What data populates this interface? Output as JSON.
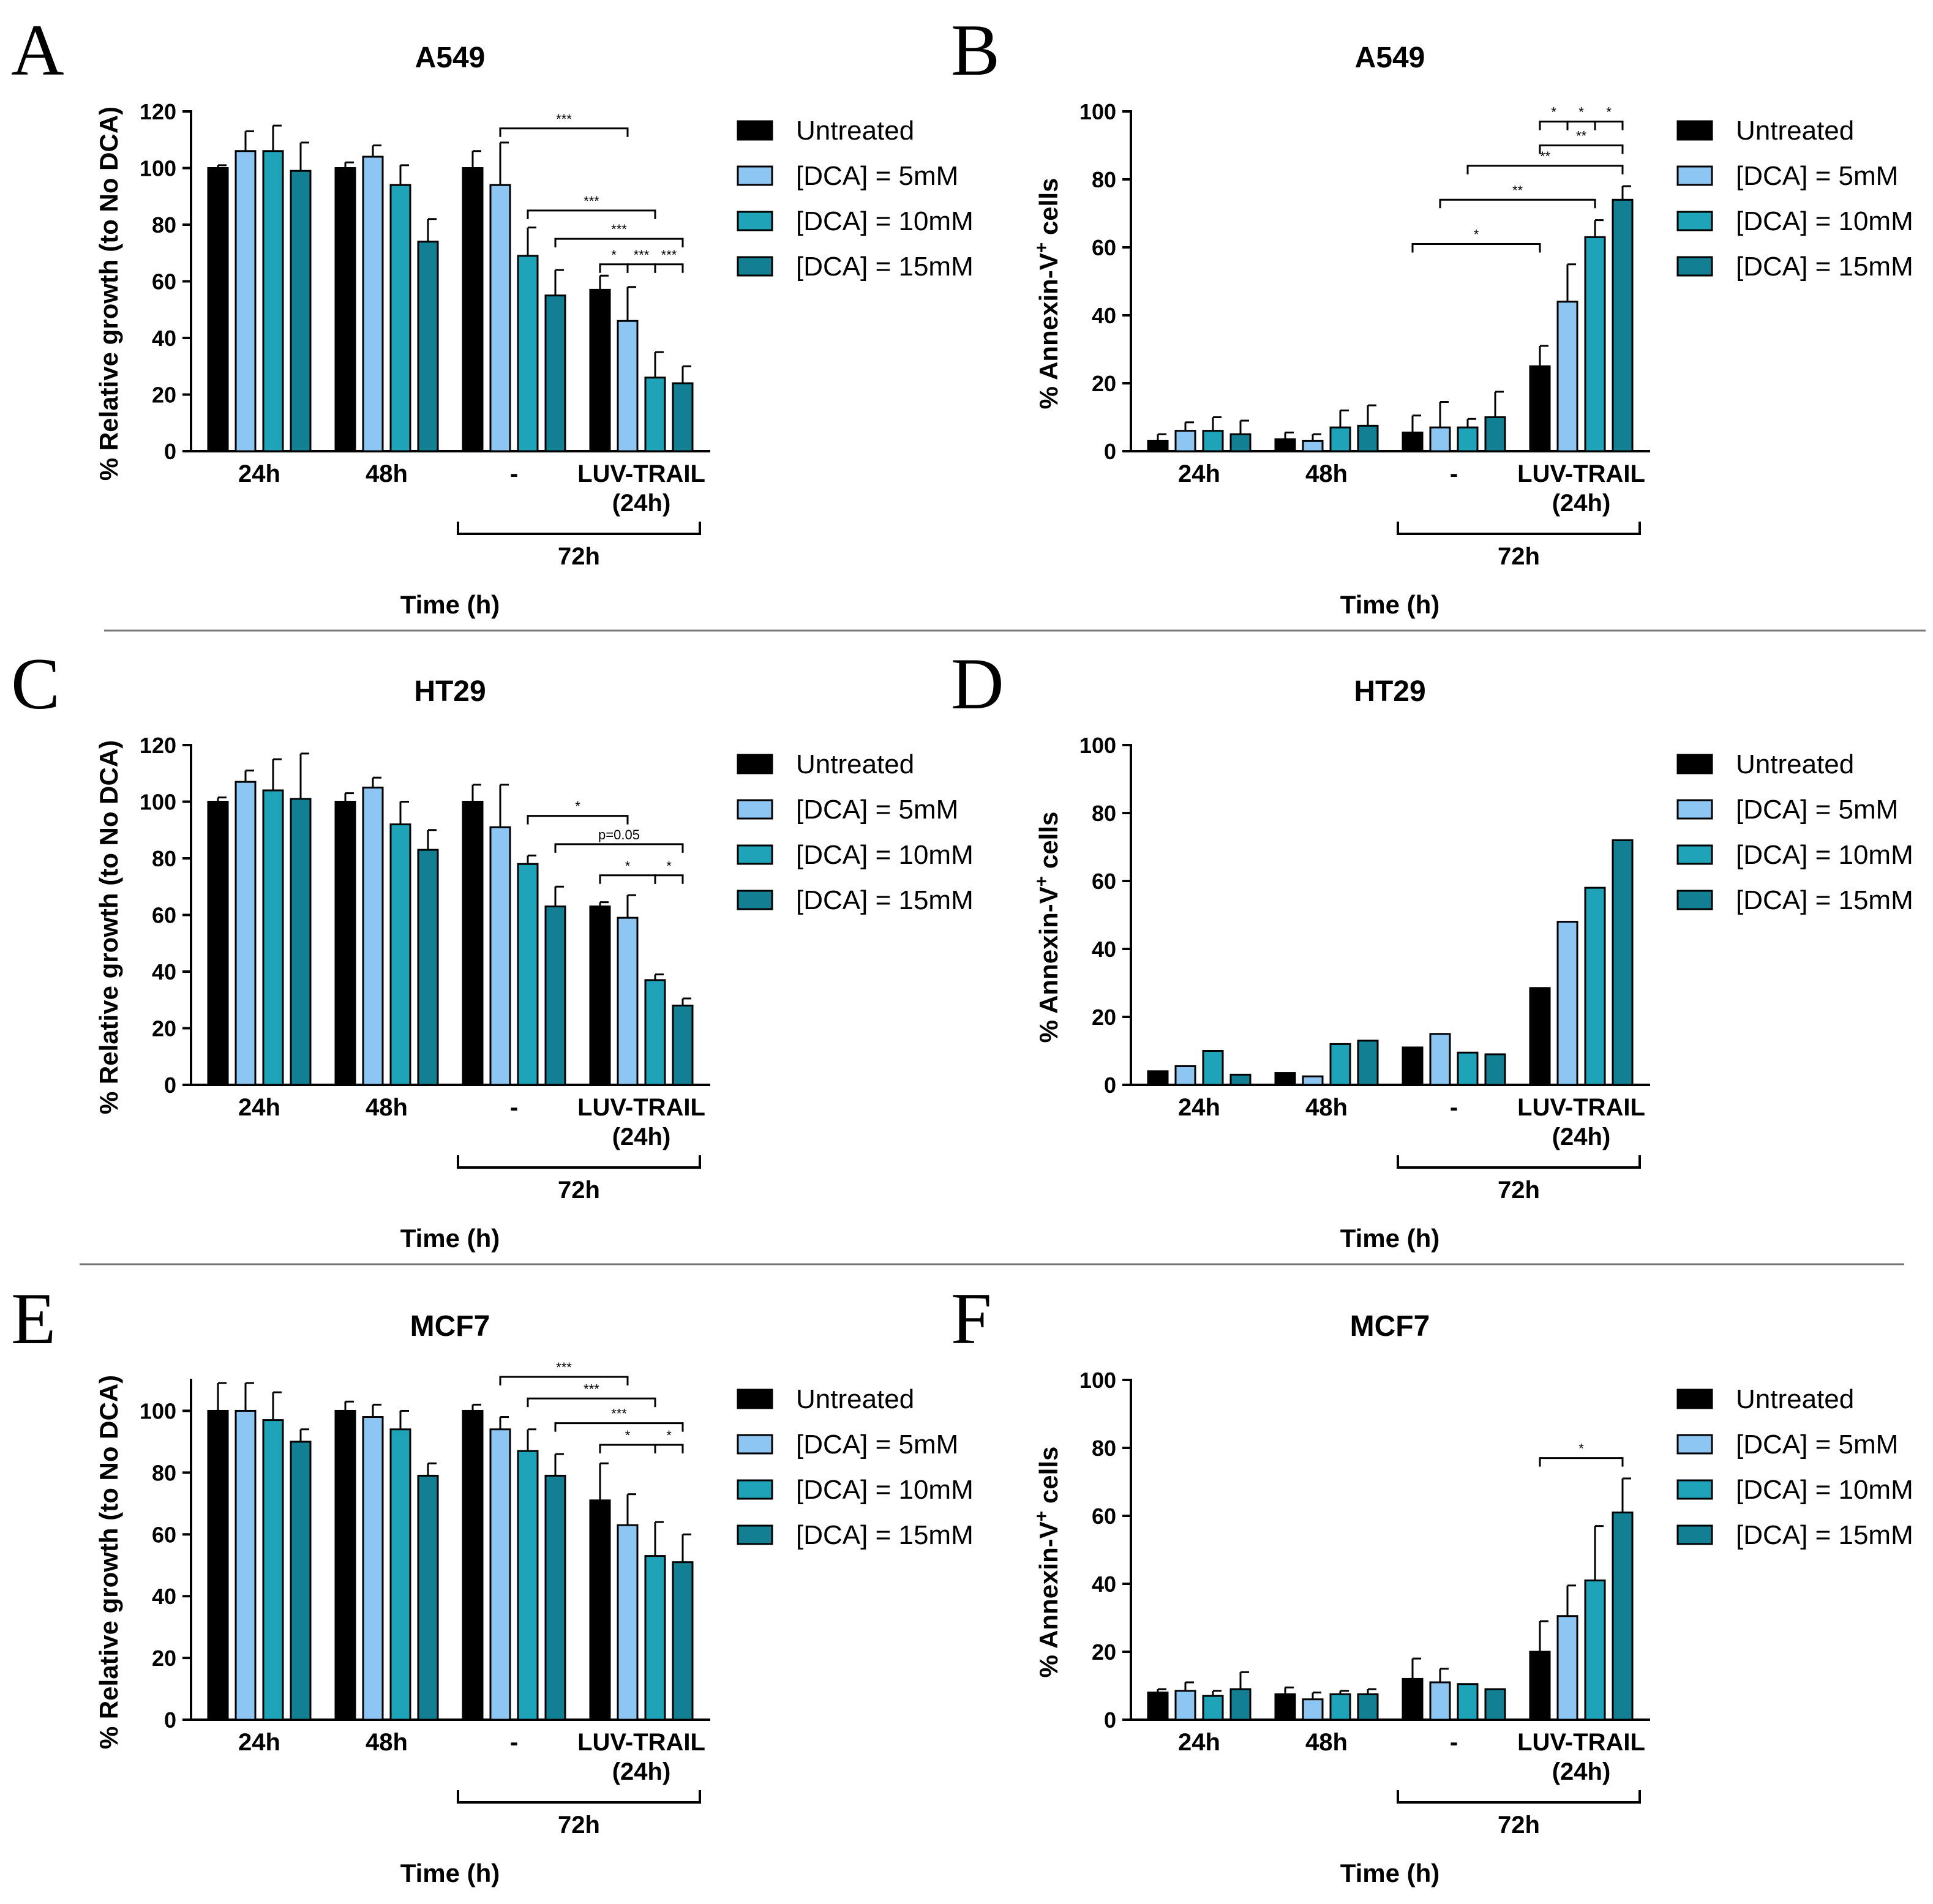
{
  "colors": {
    "untreated": "#000000",
    "dca5": "#8ec6f3",
    "dca10": "#1ea3b8",
    "dca15": "#137f93"
  },
  "legend": [
    "Untreated",
    "[DCA] = 5mM",
    "[DCA] = 10mM",
    "[DCA] = 15mM"
  ],
  "chart_data": [
    {
      "panel": "A",
      "type": "bar",
      "title": "A549",
      "ylabel": "% Relative growth (to No DCA)",
      "xlabel": "Time (h)",
      "ylim": [
        0,
        120
      ],
      "yticks": [
        "0",
        "20",
        "40",
        "60",
        "80",
        "100",
        "120"
      ],
      "categories": [
        "24h",
        "48h",
        "-",
        "LUV-TRAIL (24h)"
      ],
      "category_lines": [
        [
          "24h"
        ],
        [
          "48h"
        ],
        [
          "-"
        ],
        [
          "LUV-TRAIL",
          "(24h)"
        ]
      ],
      "group_bracket": "72h",
      "series": [
        {
          "name": "Untreated",
          "values": [
            100,
            100,
            100,
            57
          ],
          "errors": [
            1,
            2,
            6,
            5
          ]
        },
        {
          "name": "[DCA] = 5mM",
          "values": [
            106,
            104,
            94,
            46
          ],
          "errors": [
            7,
            4,
            15,
            12
          ]
        },
        {
          "name": "[DCA] = 10mM",
          "values": [
            106,
            94,
            69,
            26
          ],
          "errors": [
            9,
            7,
            10,
            9
          ]
        },
        {
          "name": "[DCA] = 15mM",
          "values": [
            99,
            74,
            55,
            24
          ],
          "errors": [
            10,
            8,
            9,
            6
          ]
        }
      ],
      "significance": [
        {
          "label": "***",
          "from": [
            2,
            1
          ],
          "to": [
            3,
            1
          ],
          "level": 114
        },
        {
          "label": "***",
          "from": [
            2,
            2
          ],
          "to": [
            3,
            2
          ],
          "level": 85
        },
        {
          "label": "***",
          "from": [
            2,
            3
          ],
          "to": [
            3,
            3
          ],
          "level": 75
        },
        {
          "label": "*",
          "from": [
            3,
            0
          ],
          "to": [
            3,
            1
          ],
          "level": 66
        },
        {
          "label": "***",
          "from": [
            3,
            1
          ],
          "to": [
            3,
            2
          ],
          "level": 66
        },
        {
          "label": "***",
          "from": [
            3,
            2
          ],
          "to": [
            3,
            3
          ],
          "level": 66
        }
      ]
    },
    {
      "panel": "B",
      "type": "bar",
      "title": "A549",
      "ylabel": "% Annexin-V+ cells",
      "xlabel": "Time (h)",
      "ylim": [
        0,
        100
      ],
      "yticks": [
        "0",
        "20",
        "40",
        "60",
        "80",
        "100"
      ],
      "categories": [
        "24h",
        "48h",
        "-",
        "LUV-TRAIL (24h)"
      ],
      "category_lines": [
        [
          "24h"
        ],
        [
          "48h"
        ],
        [
          "-"
        ],
        [
          "LUV-TRAIL",
          "(24h)"
        ]
      ],
      "group_bracket": "72h",
      "series": [
        {
          "name": "Untreated",
          "values": [
            3,
            3.5,
            5.5,
            25
          ],
          "errors": [
            2,
            2,
            5,
            6
          ]
        },
        {
          "name": "[DCA] = 5mM",
          "values": [
            6,
            3,
            7,
            44
          ],
          "errors": [
            2.5,
            2,
            7.5,
            11
          ]
        },
        {
          "name": "[DCA] = 10mM",
          "values": [
            6,
            7,
            7,
            63
          ],
          "errors": [
            4,
            5,
            2.5,
            5
          ]
        },
        {
          "name": "[DCA] = 15mM",
          "values": [
            5,
            7.5,
            10,
            74
          ],
          "errors": [
            4,
            6,
            7.5,
            4
          ]
        }
      ],
      "significance": [
        {
          "label": "*",
          "from": [
            2,
            0
          ],
          "to": [
            3,
            0
          ],
          "level": 61
        },
        {
          "label": "**",
          "from": [
            2,
            1
          ],
          "to": [
            3,
            2
          ],
          "level": 74
        },
        {
          "label": "**",
          "from": [
            2,
            2
          ],
          "to": [
            3,
            3
          ],
          "level": 84
        },
        {
          "label": "**",
          "from": [
            3,
            0
          ],
          "to": [
            3,
            3
          ],
          "level": 90
        },
        {
          "label": "*",
          "from": [
            3,
            0
          ],
          "to": [
            3,
            1
          ],
          "level": 97
        },
        {
          "label": "*",
          "from": [
            3,
            1
          ],
          "to": [
            3,
            2
          ],
          "level": 97
        },
        {
          "label": "*",
          "from": [
            3,
            2
          ],
          "to": [
            3,
            3
          ],
          "level": 97
        }
      ]
    },
    {
      "panel": "C",
      "type": "bar",
      "title": "HT29",
      "ylabel": "% Relative growth (to No DCA)",
      "xlabel": "Time (h)",
      "ylim": [
        0,
        120
      ],
      "yticks": [
        "0",
        "20",
        "40",
        "60",
        "80",
        "100",
        "120"
      ],
      "categories": [
        "24h",
        "48h",
        "-",
        "LUV-TRAIL (24h)"
      ],
      "category_lines": [
        [
          "24h"
        ],
        [
          "48h"
        ],
        [
          "-"
        ],
        [
          "LUV-TRAIL",
          "(24h)"
        ]
      ],
      "group_bracket": "72h",
      "series": [
        {
          "name": "Untreated",
          "values": [
            100,
            100,
            100,
            63
          ],
          "errors": [
            1.5,
            3,
            6,
            1.5
          ]
        },
        {
          "name": "[DCA] = 5mM",
          "values": [
            107,
            105,
            91,
            59
          ],
          "errors": [
            4,
            3.5,
            15,
            8
          ]
        },
        {
          "name": "[DCA] = 10mM",
          "values": [
            104,
            92,
            78,
            37
          ],
          "errors": [
            11,
            8,
            3,
            2
          ]
        },
        {
          "name": "[DCA] = 15mM",
          "values": [
            101,
            83,
            63,
            28
          ],
          "errors": [
            16,
            7,
            7,
            2.5
          ]
        }
      ],
      "significance": [
        {
          "label": "*",
          "from": [
            2,
            2
          ],
          "to": [
            3,
            1
          ],
          "level": 95
        },
        {
          "label": "p=0.05",
          "from": [
            2,
            3
          ],
          "to": [
            3,
            3
          ],
          "level": 85
        },
        {
          "label": "*",
          "from": [
            3,
            0
          ],
          "to": [
            3,
            2
          ],
          "level": 74
        },
        {
          "label": "*",
          "from": [
            3,
            2
          ],
          "to": [
            3,
            3
          ],
          "level": 74
        }
      ]
    },
    {
      "panel": "D",
      "type": "bar",
      "title": "HT29",
      "ylabel": "% Annexin-V+ cells",
      "xlabel": "Time (h)",
      "ylim": [
        0,
        100
      ],
      "yticks": [
        "0",
        "20",
        "40",
        "60",
        "80",
        "100"
      ],
      "categories": [
        "24h",
        "48h",
        "-",
        "LUV-TRAIL (24h)"
      ],
      "category_lines": [
        [
          "24h"
        ],
        [
          "48h"
        ],
        [
          "-"
        ],
        [
          "LUV-TRAIL",
          "(24h)"
        ]
      ],
      "group_bracket": "72h",
      "series": [
        {
          "name": "Untreated",
          "values": [
            4,
            3.5,
            11,
            28.5
          ],
          "errors": [
            0,
            0,
            0,
            0
          ]
        },
        {
          "name": "[DCA] = 5mM",
          "values": [
            5.5,
            2.5,
            15,
            48
          ],
          "errors": [
            0,
            0,
            0,
            0
          ]
        },
        {
          "name": "[DCA] = 10mM",
          "values": [
            10,
            12,
            9.5,
            58
          ],
          "errors": [
            0,
            0,
            0,
            0
          ]
        },
        {
          "name": "[DCA] = 15mM",
          "values": [
            3,
            13,
            9,
            72
          ],
          "errors": [
            0,
            0,
            0,
            0
          ]
        }
      ],
      "significance": []
    },
    {
      "panel": "E",
      "type": "bar",
      "title": "MCF7",
      "ylabel": "% Relative growth (to No DCA)",
      "xlabel": "Time (h)",
      "ylim": [
        0,
        110
      ],
      "yticks": [
        "0",
        "20",
        "40",
        "60",
        "80",
        "100"
      ],
      "categories": [
        "24h",
        "48h",
        "-",
        "LUV-TRAIL (24h)"
      ],
      "category_lines": [
        [
          "24h"
        ],
        [
          "48h"
        ],
        [
          "-"
        ],
        [
          "LUV-TRAIL",
          "(24h)"
        ]
      ],
      "group_bracket": "72h",
      "series": [
        {
          "name": "Untreated",
          "values": [
            100,
            100,
            100,
            71
          ],
          "errors": [
            9,
            3,
            2,
            12
          ]
        },
        {
          "name": "[DCA] = 5mM",
          "values": [
            100,
            98,
            94,
            63
          ],
          "errors": [
            9,
            4,
            4,
            10
          ]
        },
        {
          "name": "[DCA] = 10mM",
          "values": [
            97,
            94,
            87,
            53
          ],
          "errors": [
            9,
            6,
            7,
            11
          ]
        },
        {
          "name": "[DCA] = 15mM",
          "values": [
            90,
            79,
            79,
            51
          ],
          "errors": [
            4,
            4,
            7,
            9
          ]
        }
      ],
      "significance": [
        {
          "label": "***",
          "from": [
            2,
            1
          ],
          "to": [
            3,
            1
          ],
          "level": 111
        },
        {
          "label": "***",
          "from": [
            2,
            2
          ],
          "to": [
            3,
            2
          ],
          "level": 104
        },
        {
          "label": "***",
          "from": [
            2,
            3
          ],
          "to": [
            3,
            3
          ],
          "level": 96
        },
        {
          "label": "*",
          "from": [
            3,
            0
          ],
          "to": [
            3,
            2
          ],
          "level": 89
        },
        {
          "label": "*",
          "from": [
            3,
            2
          ],
          "to": [
            3,
            3
          ],
          "level": 89
        }
      ]
    },
    {
      "panel": "F",
      "type": "bar",
      "title": "MCF7",
      "ylabel": "% Annexin-V+ cells",
      "xlabel": "Time (h)",
      "ylim": [
        0,
        100
      ],
      "yticks": [
        "0",
        "20",
        "40",
        "60",
        "80",
        "100"
      ],
      "categories": [
        "24h",
        "48h",
        "-",
        "LUV-TRAIL (24h)"
      ],
      "category_lines": [
        [
          "24h"
        ],
        [
          "48h"
        ],
        [
          "-"
        ],
        [
          "LUV-TRAIL",
          "(24h)"
        ]
      ],
      "group_bracket": "72h",
      "series": [
        {
          "name": "Untreated",
          "values": [
            8,
            7.5,
            12,
            20
          ],
          "errors": [
            1,
            2,
            6,
            9
          ]
        },
        {
          "name": "[DCA] = 5mM",
          "values": [
            8.5,
            6,
            11,
            30.5
          ],
          "errors": [
            2.5,
            2,
            4,
            9
          ]
        },
        {
          "name": "[DCA] = 10mM",
          "values": [
            7,
            7.5,
            10.5,
            41
          ],
          "errors": [
            1.5,
            1,
            0,
            16
          ]
        },
        {
          "name": "[DCA] = 15mM",
          "values": [
            9,
            7.5,
            9,
            61
          ],
          "errors": [
            5,
            1.5,
            0,
            10
          ]
        }
      ],
      "significance": [
        {
          "label": "*",
          "from": [
            3,
            0
          ],
          "to": [
            3,
            3
          ],
          "level": 77
        }
      ]
    }
  ]
}
